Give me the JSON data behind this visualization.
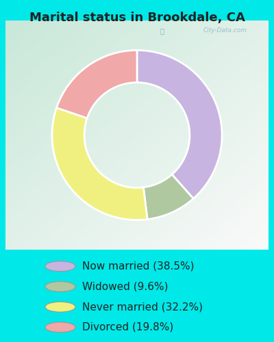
{
  "title": "Marital status in Brookdale, CA",
  "slices": [
    38.5,
    9.6,
    32.2,
    19.8
  ],
  "labels": [
    "Now married (38.5%)",
    "Widowed (9.6%)",
    "Never married (32.2%)",
    "Divorced (19.8%)"
  ],
  "colors": [
    "#c8b4e0",
    "#b0c8a0",
    "#f0f080",
    "#f0a8a8"
  ],
  "background_color": "#00e8e8",
  "chart_bg_color_tl": "#c8e8d8",
  "chart_bg_color_br": "#e8f5ec",
  "title_fontsize": 13,
  "legend_fontsize": 11,
  "watermark": "City-Data.com",
  "donut_outer_r": 1.0,
  "donut_width": 0.38
}
